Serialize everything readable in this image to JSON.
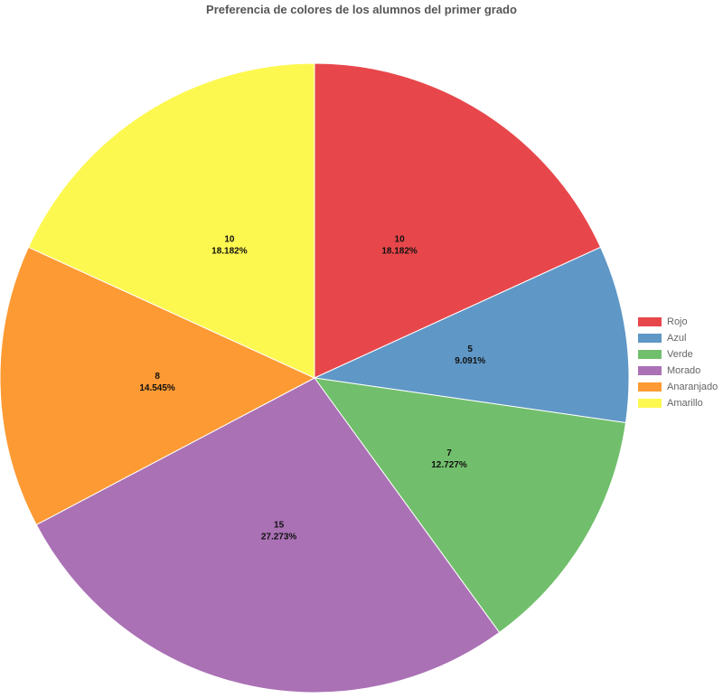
{
  "chart_data": {
    "type": "pie",
    "title": "Preferencia de colores de los alumnos del primer grado",
    "legend": "right",
    "slices": [
      {
        "label": "Rojo",
        "value": 10,
        "percent": "18.182%",
        "color": "#e7474b"
      },
      {
        "label": "Azul",
        "value": 5,
        "percent": "9.091%",
        "color": "#5f97c6"
      },
      {
        "label": "Verde",
        "value": 7,
        "percent": "12.727%",
        "color": "#71bf6c"
      },
      {
        "label": "Morado",
        "value": 15,
        "percent": "27.273%",
        "color": "#aa71b5"
      },
      {
        "label": "Anaranjado",
        "value": 8,
        "percent": "14.545%",
        "color": "#fd9a33"
      },
      {
        "label": "Amarillo",
        "value": 10,
        "percent": "18.182%",
        "color": "#fdf850"
      }
    ]
  }
}
